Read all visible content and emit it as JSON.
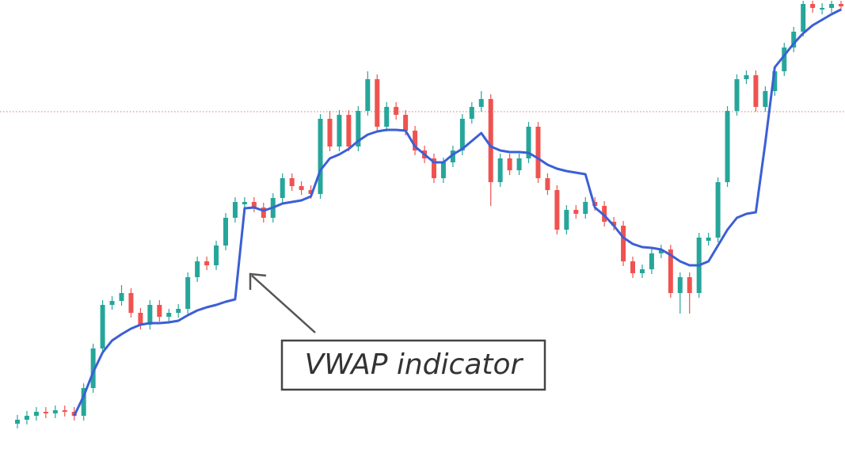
{
  "chart_data": {
    "type": "candlestick",
    "annotation": "VWAP indicator",
    "ylim": [
      0,
      572
    ],
    "up_color": "#26a69a",
    "down_color": "#ef5350",
    "price_line": {
      "value": 431,
      "color": "#e57373"
    },
    "open": [
      37,
      42,
      47,
      52,
      50,
      54,
      52,
      47,
      82,
      132,
      187,
      192,
      202,
      177,
      162,
      187,
      172,
      177,
      182,
      222,
      242,
      237,
      262,
      297,
      314,
      317,
      310,
      297,
      322,
      347,
      337,
      332,
      327,
      422,
      387,
      427,
      387,
      432,
      472,
      412,
      437,
      427,
      407,
      382,
      372,
      347,
      367,
      382,
      422,
      437,
      447,
      342,
      372,
      357,
      372,
      412,
      347,
      332,
      282,
      307,
      302,
      317,
      312,
      292,
      287,
      242,
      227,
      232,
      252,
      257,
      202,
      222,
      202,
      268,
      272,
      342,
      432,
      472,
      477,
      437,
      457,
      482,
      512,
      532,
      567,
      560,
      562,
      567
    ],
    "high": [
      48,
      53,
      58,
      58,
      60,
      60,
      58,
      88,
      138,
      193,
      198,
      212,
      208,
      183,
      193,
      193,
      182,
      188,
      228,
      248,
      248,
      268,
      303,
      323,
      323,
      323,
      316,
      328,
      353,
      353,
      343,
      338,
      428,
      432,
      433,
      433,
      438,
      482,
      478,
      443,
      443,
      433,
      413,
      388,
      378,
      373,
      388,
      428,
      443,
      457,
      453,
      378,
      378,
      378,
      418,
      418,
      353,
      338,
      313,
      313,
      323,
      323,
      318,
      298,
      293,
      248,
      238,
      258,
      263,
      263,
      228,
      228,
      278,
      278,
      348,
      438,
      478,
      483,
      483,
      463,
      488,
      518,
      538,
      571,
      571,
      568,
      571,
      571
    ],
    "low": [
      31,
      36,
      41,
      44,
      44,
      46,
      41,
      41,
      76,
      126,
      181,
      186,
      171,
      156,
      156,
      166,
      166,
      171,
      176,
      216,
      231,
      231,
      256,
      291,
      308,
      304,
      291,
      291,
      316,
      331,
      326,
      321,
      321,
      381,
      381,
      381,
      381,
      426,
      406,
      406,
      421,
      401,
      376,
      366,
      341,
      341,
      361,
      376,
      416,
      431,
      312,
      336,
      351,
      351,
      366,
      341,
      326,
      276,
      276,
      296,
      296,
      306,
      286,
      281,
      236,
      221,
      221,
      226,
      246,
      196,
      176,
      176,
      196,
      262,
      266,
      336,
      426,
      466,
      431,
      431,
      451,
      476,
      506,
      526,
      556,
      554,
      556,
      558
    ],
    "close": [
      42,
      47,
      52,
      50,
      54,
      52,
      47,
      82,
      132,
      187,
      192,
      202,
      177,
      162,
      187,
      172,
      177,
      182,
      222,
      242,
      237,
      262,
      297,
      317,
      317,
      310,
      297,
      322,
      347,
      337,
      332,
      327,
      422,
      387,
      427,
      387,
      432,
      472,
      412,
      437,
      427,
      407,
      382,
      372,
      347,
      367,
      382,
      422,
      437,
      447,
      342,
      372,
      357,
      372,
      412,
      347,
      332,
      282,
      307,
      302,
      317,
      312,
      292,
      287,
      242,
      227,
      232,
      252,
      257,
      202,
      222,
      202,
      272,
      272,
      342,
      432,
      472,
      477,
      437,
      457,
      482,
      512,
      532,
      567,
      562,
      562,
      567,
      564
    ],
    "vwap": {
      "color": "#3b5fd6",
      "values": [
        null,
        null,
        null,
        null,
        null,
        null,
        47,
        72,
        102,
        127,
        142,
        150,
        157,
        162,
        164,
        164,
        165,
        167,
        174,
        180,
        184,
        187,
        191,
        194,
        309,
        310,
        306,
        310,
        315,
        317,
        319,
        324,
        357,
        372,
        377,
        384,
        394,
        402,
        406,
        408,
        408,
        407,
        387,
        377,
        367,
        367,
        377,
        384,
        394,
        404,
        387,
        382,
        380,
        380,
        379,
        372,
        364,
        359,
        356,
        354,
        352,
        310,
        300,
        287,
        272,
        264,
        260,
        259,
        257,
        250,
        242,
        237,
        237,
        242,
        262,
        282,
        297,
        302,
        304,
        392,
        487,
        502,
        517,
        530,
        540,
        547,
        554,
        560
      ]
    }
  }
}
